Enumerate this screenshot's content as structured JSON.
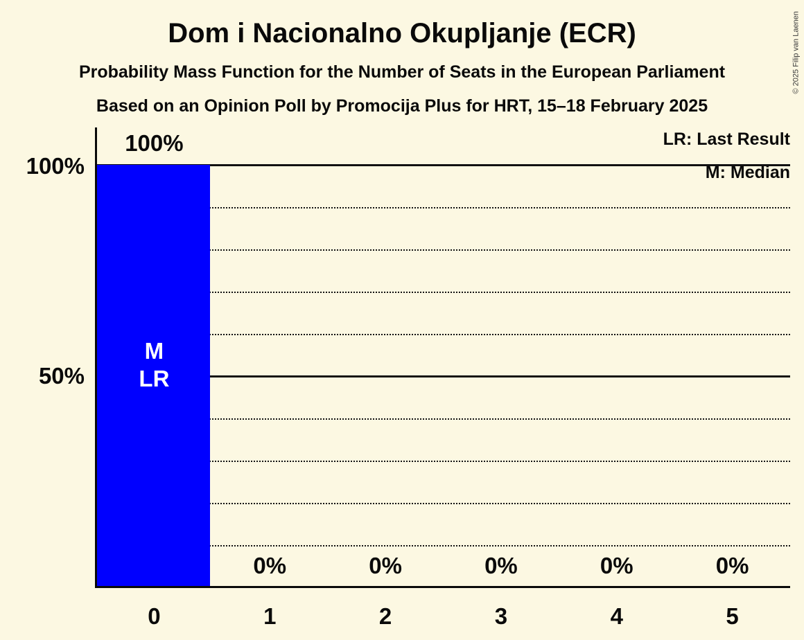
{
  "title": "Dom i Nacionalno Okupljanje (ECR)",
  "subtitle1": "Probability Mass Function for the Number of Seats in the European Parliament",
  "subtitle2": "Based on an Opinion Poll by Promocija Plus for HRT, 15–18 February 2025",
  "copyright": "© 2025 Filip van Laenen",
  "legend": {
    "lr": "LR: Last Result",
    "m": "M: Median"
  },
  "y_axis": {
    "labels": [
      "100%",
      "50%"
    ]
  },
  "chart_data": {
    "type": "bar",
    "title": "Dom i Nacionalno Okupljanje (ECR)",
    "categories": [
      "0",
      "1",
      "2",
      "3",
      "4",
      "5"
    ],
    "values": [
      100,
      0,
      0,
      0,
      0,
      0
    ],
    "value_labels": [
      "100%",
      "0%",
      "0%",
      "0%",
      "0%",
      "0%"
    ],
    "ylim": [
      0,
      100
    ],
    "y_tick_labels": [
      "100%",
      "50%"
    ],
    "bar_color": "#0000ff",
    "bar_label_color": "#ffffff",
    "annotated_bar": 0,
    "bar_annotations": [
      "M",
      "LR"
    ],
    "gridlines": {
      "solid_percent": [
        100,
        50
      ],
      "dotted_percent": [
        90,
        80,
        70,
        60,
        40,
        30,
        20,
        10
      ],
      "grid_on": true
    },
    "legend_entries": [
      "LR: Last Result",
      "M: Median"
    ],
    "legend_position": "top-right"
  }
}
